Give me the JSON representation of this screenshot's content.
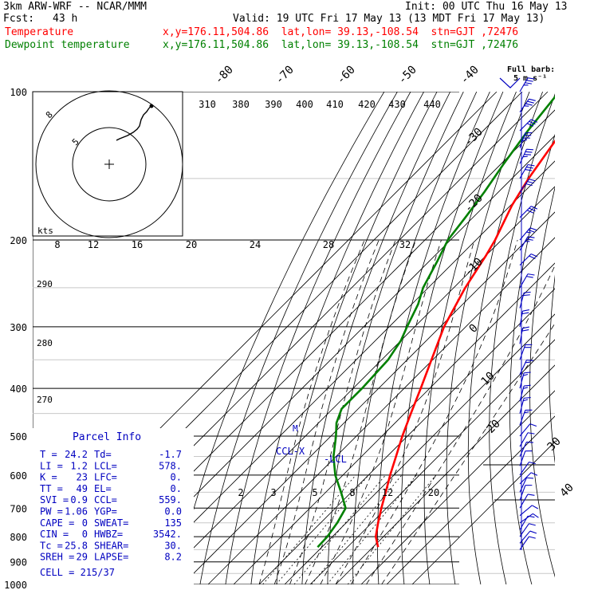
{
  "header": {
    "model": "3km ARW-WRF -- NCAR/MMM",
    "init": "Init: 00 UTC Thu 16 May 13",
    "fcst_label": "Fcst:",
    "fcst_value": "43 h",
    "valid": "Valid: 19 UTC Fri 17 May 13 (13 MDT Fri 17 May 13)",
    "temp_label": "Temperature",
    "temp_info": "x,y=176.11,504.86  lat,lon= 39.13,-108.54  stn=GJT ,72476",
    "dew_label": "Dewpoint temperature",
    "dew_info": "x,y=176.11,504.86  lat,lon= 39.13,-108.54  stn=GJT ,72476",
    "barb_title": "Full barb:",
    "barb_unit": "5 m s⁻¹"
  },
  "chart_data": {
    "type": "line",
    "title": "Skew-T log-p",
    "pressure_ticks": [
      "100",
      "200",
      "300",
      "400",
      "500",
      "600",
      "700",
      "800",
      "900",
      "1000"
    ],
    "isotherm_labels": [
      "-80",
      "-70",
      "-60",
      "-50",
      "-40",
      "-30",
      "-20",
      "-10",
      "0",
      "10",
      "20",
      "30",
      "40"
    ],
    "theta_labels": [
      "310",
      "380",
      "390",
      "400",
      "410",
      "420",
      "430",
      "440"
    ],
    "mixing_ratio_labels": [
      "2",
      "3",
      "5",
      "8",
      "12",
      "20"
    ],
    "hodo_speed_labels": [
      "8",
      "12",
      "16",
      "20",
      "24",
      "28",
      "32"
    ],
    "hodo_unit": "kts",
    "hodo_ring_labels": [
      "8",
      "5"
    ],
    "adiabat_labels": [
      "290",
      "280",
      "270"
    ],
    "markers": {
      "ccl": "CCL-X",
      "lcl": "-LCL",
      "m": "M"
    },
    "colors": {
      "temperature": "#ff0000",
      "dewpoint": "#008000",
      "barbs": "#0000c0",
      "grid": "#000000"
    },
    "series": [
      {
        "name": "Temperature",
        "color": "#ff0000",
        "points": [
          [
            840,
            22.0
          ],
          [
            800,
            17.0
          ],
          [
            750,
            12.5
          ],
          [
            700,
            8.0
          ],
          [
            650,
            3.5
          ],
          [
            600,
            -1.5
          ],
          [
            550,
            -6.5
          ],
          [
            500,
            -12.0
          ],
          [
            450,
            -17.5
          ],
          [
            400,
            -23.5
          ],
          [
            350,
            -30.5
          ],
          [
            300,
            -38.5
          ],
          [
            250,
            -45.5
          ],
          [
            215,
            -50.0
          ],
          [
            200,
            -52.5
          ],
          [
            170,
            -59.5
          ],
          [
            150,
            -63.5
          ],
          [
            130,
            -67.0
          ],
          [
            115,
            -70.0
          ],
          [
            100,
            -72.5
          ]
        ]
      },
      {
        "name": "Dewpoint temperature",
        "color": "#008000",
        "points": [
          [
            840,
            -1.7
          ],
          [
            800,
            -2.0
          ],
          [
            750,
            -3.5
          ],
          [
            700,
            -6.0
          ],
          [
            650,
            -14.0
          ],
          [
            600,
            -23.0
          ],
          [
            550,
            -31.0
          ],
          [
            500,
            -38.0
          ],
          [
            470,
            -43.0
          ],
          [
            440,
            -46.5
          ],
          [
            400,
            -46.5
          ],
          [
            350,
            -47.5
          ],
          [
            320,
            -50.0
          ],
          [
            300,
            -53.0
          ],
          [
            270,
            -57.5
          ],
          [
            250,
            -62.0
          ],
          [
            220,
            -67.0
          ],
          [
            200,
            -71.0
          ],
          [
            180,
            -73.0
          ],
          [
            160,
            -75.5
          ],
          [
            140,
            -79.0
          ],
          [
            120,
            -82.5
          ],
          [
            100,
            -85.5
          ]
        ]
      }
    ],
    "parcel_info": {
      "title": "Parcel Info",
      "rows": [
        {
          "k1": "T",
          "v1": "24.2",
          "k2": "Td",
          "v2": "-1.7"
        },
        {
          "k1": "LI",
          "v1": "1.2",
          "k2": "LCL",
          "v2": "578."
        },
        {
          "k1": "K",
          "v1": "23",
          "k2": "LFC",
          "v2": "0."
        },
        {
          "k1": "TT",
          "v1": "49",
          "k2": "EL",
          "v2": "0."
        },
        {
          "k1": "SVI",
          "v1": "0.9",
          "k2": "CCL",
          "v2": "559."
        },
        {
          "k1": "PW",
          "v1": "1.06",
          "k2": "YGP",
          "v2": "0.0"
        },
        {
          "k1": "CAPE",
          "v1": "0",
          "k2": "SWEAT",
          "v2": "135"
        },
        {
          "k1": "CIN",
          "v1": "0",
          "k2": "HWBZ",
          "v2": "3542."
        },
        {
          "k1": "Tc",
          "v1": "25.8",
          "k2": "SHEAR",
          "v2": "30."
        },
        {
          "k1": "SREH",
          "v1": "29",
          "k2": "LAPSE",
          "v2": "8.2"
        }
      ],
      "cell": "CELL = 215/37"
    },
    "wind_profile": [
      [
        100,
        30,
        35
      ],
      [
        110,
        35,
        35
      ],
      [
        120,
        45,
        30
      ],
      [
        130,
        20,
        35
      ],
      [
        140,
        25,
        35
      ],
      [
        150,
        30,
        30
      ],
      [
        160,
        35,
        30
      ],
      [
        180,
        45,
        30
      ],
      [
        200,
        40,
        25
      ],
      [
        210,
        30,
        25
      ],
      [
        225,
        45,
        20
      ],
      [
        250,
        30,
        20
      ],
      [
        275,
        15,
        20
      ],
      [
        300,
        10,
        20
      ],
      [
        325,
        10,
        18
      ],
      [
        350,
        20,
        18
      ],
      [
        375,
        25,
        16
      ],
      [
        400,
        15,
        15
      ],
      [
        425,
        15,
        15
      ],
      [
        450,
        15,
        15
      ],
      [
        475,
        20,
        15
      ],
      [
        500,
        40,
        12
      ],
      [
        525,
        30,
        12
      ],
      [
        550,
        25,
        12
      ],
      [
        575,
        20,
        12
      ],
      [
        600,
        35,
        10
      ],
      [
        625,
        45,
        8
      ],
      [
        650,
        25,
        8
      ],
      [
        675,
        20,
        8
      ],
      [
        700,
        30,
        10
      ],
      [
        725,
        50,
        12
      ],
      [
        750,
        55,
        12
      ],
      [
        775,
        30,
        10
      ],
      [
        800,
        35,
        10
      ],
      [
        825,
        40,
        10
      ],
      [
        850,
        35,
        10
      ]
    ]
  }
}
